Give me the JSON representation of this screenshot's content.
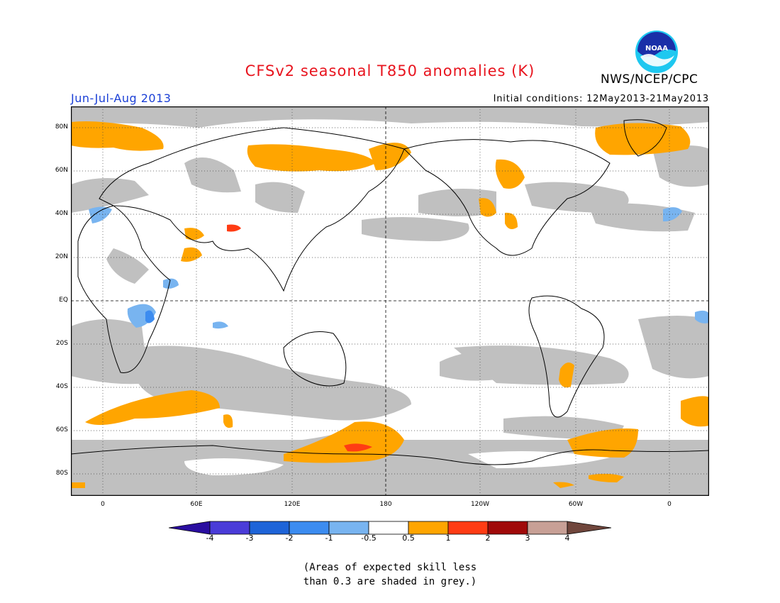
{
  "header": {
    "title": "CFSv2 seasonal T850 anomalies (K)",
    "season": "Jun-Jul-Aug 2013",
    "initial_conditions": "Initial conditions: 12May2013-21May2013",
    "agency": "NWS/NCEP/CPC",
    "logo_text": "NOAA"
  },
  "map": {
    "lon_labels": [
      "0",
      "60E",
      "120E",
      "180",
      "120W",
      "60W",
      "0"
    ],
    "lat_labels": [
      "80N",
      "60N",
      "40N",
      "20N",
      "EQ",
      "20S",
      "40S",
      "60S",
      "80S"
    ],
    "colors": {
      "grey_low_skill": "#c0c0c0",
      "land_outline": "#000000",
      "warm_0_5_to_1": "#ffa500",
      "warm_1_to_2": "#ff3c14",
      "cool_minus_1_to_minus_0_5": "#78b4f0",
      "cool_minus_2_to_minus_1": "#3c8cf0"
    }
  },
  "colorbar": {
    "labels": [
      "-4",
      "-3",
      "-2",
      "-1",
      "-0.5",
      "0.5",
      "1",
      "2",
      "3",
      "4"
    ],
    "colors": [
      "#2a0ea0",
      "#4a3cd8",
      "#1e64d8",
      "#3c8cf0",
      "#78b4f0",
      "#ffffff",
      "#ffa500",
      "#ff3c14",
      "#a00a0a",
      "#c8a096",
      "#70463c"
    ]
  },
  "footnote": {
    "line1": "(Areas of expected skill less",
    "line2": "than 0.3 are shaded in grey.)"
  }
}
